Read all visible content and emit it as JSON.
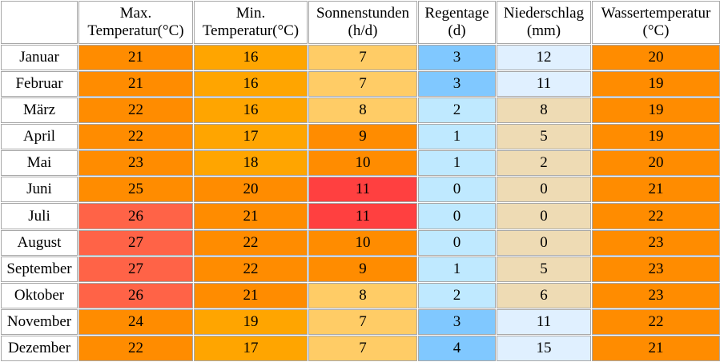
{
  "table": {
    "header": [
      [
        "Max.",
        "Temperatur(°C)"
      ],
      [
        "Min.",
        "Temperatur(°C)"
      ],
      [
        "Sonnenstunden",
        "(h/d)"
      ],
      [
        "Regentage",
        "(d)"
      ],
      [
        "Niederschlag",
        "(mm)"
      ],
      [
        "Wassertemperatur",
        "(°C)"
      ]
    ],
    "rows": [
      {
        "month": "Januar",
        "values": [
          21,
          16,
          7,
          3,
          12,
          20
        ],
        "colors": [
          "#ff8c00",
          "#ffa500",
          "#ffcc66",
          "#80c8ff",
          "#e0f0ff",
          "#ff8c00"
        ]
      },
      {
        "month": "Februar",
        "values": [
          21,
          16,
          7,
          3,
          11,
          19
        ],
        "colors": [
          "#ff8c00",
          "#ffa500",
          "#ffcc66",
          "#80c8ff",
          "#e0f0ff",
          "#ff8c00"
        ]
      },
      {
        "month": "März",
        "values": [
          22,
          16,
          8,
          2,
          8,
          19
        ],
        "colors": [
          "#ff8c00",
          "#ffa500",
          "#ffcc66",
          "#bfe9ff",
          "#eedbb4",
          "#ff8c00"
        ]
      },
      {
        "month": "April",
        "values": [
          22,
          17,
          9,
          1,
          5,
          19
        ],
        "colors": [
          "#ff8c00",
          "#ffa500",
          "#ff8c00",
          "#bfe9ff",
          "#eedbb4",
          "#ff8c00"
        ]
      },
      {
        "month": "Mai",
        "values": [
          23,
          18,
          10,
          1,
          2,
          20
        ],
        "colors": [
          "#ff8c00",
          "#ffa500",
          "#ff8c00",
          "#bfe9ff",
          "#eedbb4",
          "#ff8c00"
        ]
      },
      {
        "month": "Juni",
        "values": [
          25,
          20,
          11,
          0,
          0,
          21
        ],
        "colors": [
          "#ff8c00",
          "#ff8c00",
          "#ff4040",
          "#bfe9ff",
          "#eedbb4",
          "#ff8c00"
        ]
      },
      {
        "month": "Juli",
        "values": [
          26,
          21,
          11,
          0,
          0,
          22
        ],
        "colors": [
          "#ff6347",
          "#ff8c00",
          "#ff4040",
          "#bfe9ff",
          "#eedbb4",
          "#ff8c00"
        ]
      },
      {
        "month": "August",
        "values": [
          27,
          22,
          10,
          0,
          0,
          23
        ],
        "colors": [
          "#ff6347",
          "#ff8c00",
          "#ff8c00",
          "#bfe9ff",
          "#eedbb4",
          "#ff8c00"
        ]
      },
      {
        "month": "September",
        "values": [
          27,
          22,
          9,
          1,
          5,
          23
        ],
        "colors": [
          "#ff6347",
          "#ff8c00",
          "#ff8c00",
          "#bfe9ff",
          "#eedbb4",
          "#ff8c00"
        ]
      },
      {
        "month": "Oktober",
        "values": [
          26,
          21,
          8,
          2,
          6,
          23
        ],
        "colors": [
          "#ff6347",
          "#ff8c00",
          "#ffcc66",
          "#bfe9ff",
          "#eedbb4",
          "#ff8c00"
        ]
      },
      {
        "month": "November",
        "values": [
          24,
          19,
          7,
          3,
          11,
          22
        ],
        "colors": [
          "#ff8c00",
          "#ffa500",
          "#ffcc66",
          "#80c8ff",
          "#e0f0ff",
          "#ff8c00"
        ]
      },
      {
        "month": "Dezember",
        "values": [
          22,
          17,
          7,
          4,
          15,
          21
        ],
        "colors": [
          "#ff8c00",
          "#ffa500",
          "#ffcc66",
          "#80c8ff",
          "#e0f0ff",
          "#ff8c00"
        ]
      }
    ]
  }
}
